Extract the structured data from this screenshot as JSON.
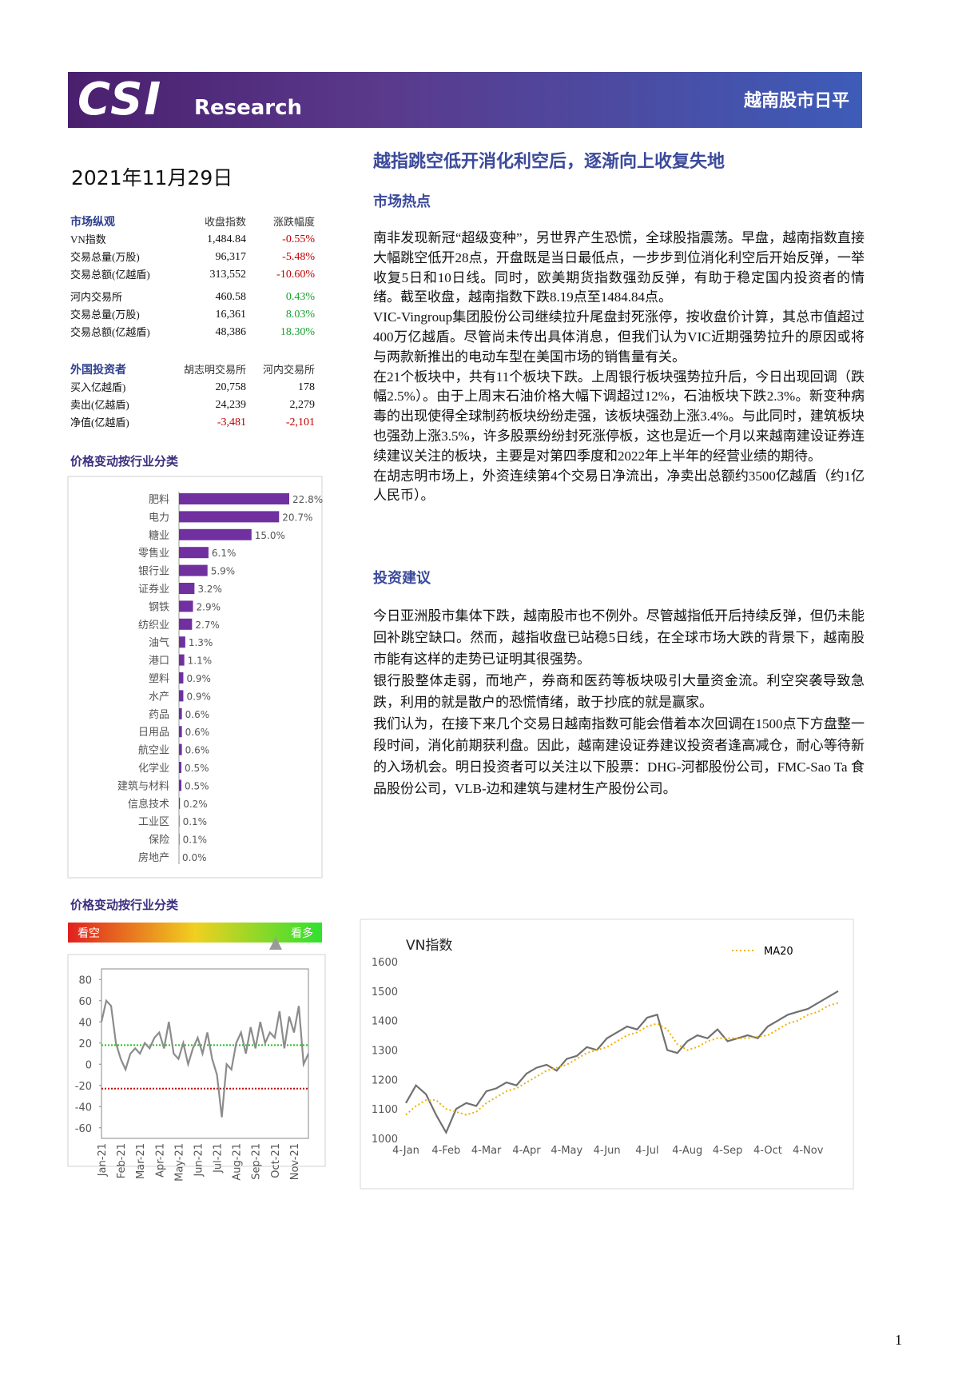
{
  "header": {
    "logo": "CSI",
    "brand": "Research",
    "report_name": "越南股市日平"
  },
  "date": "2021年11月29日",
  "title": "越指跳空低开消化利空后，逐渐向上收复失地",
  "market_table": {
    "header": [
      "市场纵观",
      "收盘指数",
      "涨跌幅度"
    ],
    "rows": [
      [
        "VN指数",
        "1,484.84",
        "-0.55%"
      ],
      [
        "交易总量(万股)",
        "96,317",
        "-5.48%"
      ],
      [
        "交易总额(亿越盾)",
        "313,552",
        "-10.60%"
      ],
      [
        "河内交易所",
        "460.58",
        "0.43%"
      ],
      [
        "交易总量(万股)",
        "16,361",
        "8.03%"
      ],
      [
        "交易总额(亿越盾)",
        "48,386",
        "18.30%"
      ]
    ]
  },
  "foreign_table": {
    "header": [
      "外国投资者",
      "胡志明交易所",
      "河内交易所"
    ],
    "rows": [
      [
        "买入亿越盾)",
        "20,758",
        "178"
      ],
      [
        "卖出(亿越盾)",
        "24,239",
        "2,279"
      ],
      [
        "净值(亿越盾)",
        "-3,481",
        "-2,101"
      ]
    ]
  },
  "sections": [
    {
      "heading": "市场热点",
      "paragraphs": [
        "南非发现新冠“超级变种”，另世界产生恐慌，全球股指震荡。早盘，越南指数直接大幅跳空低开28点，开盘既是当日最低点，一步步到位消化利空后开始反弹，一举收复5日和10日线。同时，欧美期货指数强劲反弹，有助于稳定国内投资者的情绪。截至收盘，越南指数下跌8.19点至1484.84点。",
        "VIC-Vingroup集团股份公司继续拉升尾盘封死涨停，按收盘价计算，其总市值超过400万亿越盾。尽管尚未传出具体消息，但我们认为VIC近期强势拉升的原因或将与两款新推出的电动车型在美国市场的销售量有关。",
        "在21个板块中，共有11个板块下跌。上周银行板块强势拉升后，今日出现回调（跌幅2.5%）。由于上周末石油价格大幅下调超过12%，石油板块下跌2.3%。新变种病毒的出现使得全球制药板块纷纷走强，该板块强劲上涨3.4%。与此同时，建筑板块也强劲上涨3.5%，许多股票纷纷封死涨停板，这也是近一个月以来越南建设证券连续建议关注的板块，主要是对第四季度和2022年上半年的经营业绩的期待。",
        "在胡志明市场上，外资连续第4个交易日净流出，净卖出总额约3500亿越盾（约1亿人民币）。"
      ]
    },
    {
      "heading": "投资建议",
      "paragraphs": [
        "今日亚洲股市集体下跌，越南股市也不例外。尽管越指低开后持续反弹，但仍未能回补跳空缺口。然而，越指收盘已站稳5日线，在全球市场大跌的背景下，越南股市能有这样的走势已证明其很强势。",
        "银行股整体走弱，而地产，券商和医药等板块吸引大量资金流。利空突袭导致急跌，利用的就是散户的恐慌情绪，敢于抄底的就是赢家。",
        "我们认为，在接下来几个交易日越南指数可能会借着本次回调在1500点下方盘整一段时间，消化前期获利盘。因此，越南建设证券建议投资者逢高减仓，耐心等待新的入场机会。明日投资者可以关注以下股票：DHG-河都股份公司，FMC-Sao Ta 食品股份公司，VLB-边和建筑与建材生产股份公司。"
      ]
    }
  ],
  "page_number": "1",
  "chart_data": [
    {
      "type": "hbar",
      "title": "价格变动按行业分类",
      "color": "#7030a0",
      "categories": [
        "肥料",
        "电力",
        "糖业",
        "零售业",
        "银行业",
        "证券业",
        "钢铁",
        "纺织业",
        "油气",
        "港口",
        "塑料",
        "水产",
        "药品",
        "日用品",
        "航空业",
        "化学业",
        "建筑与材料",
        "信息技术",
        "工业区",
        "保险",
        "房地产"
      ],
      "values": [
        22.8,
        20.7,
        15.0,
        6.1,
        5.9,
        3.2,
        2.9,
        2.7,
        1.3,
        1.1,
        0.9,
        0.9,
        0.6,
        0.6,
        0.6,
        0.5,
        0.5,
        0.2,
        0.1,
        0.1,
        0.0
      ],
      "value_labels": [
        "22.8%",
        "20.7%",
        "15.0%",
        "6.1%",
        "5.9%",
        "3.2%",
        "2.9%",
        "2.7%",
        "1.3%",
        "1.1%",
        "0.9%",
        "0.9%",
        "0.6%",
        "0.6%",
        "0.6%",
        "0.5%",
        "0.5%",
        "0.2%",
        "0.1%",
        "0.1%",
        "0.0%"
      ]
    },
    {
      "type": "line",
      "title": "价格变动按行业分类",
      "bear_label": "看空",
      "bull_label": "看多",
      "categories": [
        "Jan-21",
        null,
        null,
        null,
        "Feb-21",
        null,
        null,
        null,
        "Mar-21",
        null,
        null,
        null,
        "Apr-21",
        null,
        null,
        null,
        "May-21",
        null,
        null,
        null,
        "Jun-21",
        null,
        null,
        null,
        "Jul-21",
        null,
        null,
        null,
        "Aug-21",
        null,
        null,
        null,
        "Sep-21",
        null,
        null,
        null,
        "Oct-21",
        null,
        null,
        null,
        "Nov-21",
        null,
        null,
        null
      ],
      "series": [
        {
          "color": "#8c8c8c",
          "values": [
            40,
            60,
            55,
            20,
            5,
            -5,
            10,
            15,
            10,
            20,
            15,
            25,
            30,
            15,
            40,
            10,
            5,
            20,
            0,
            15,
            25,
            10,
            30,
            5,
            -10,
            -50,
            0,
            -5,
            20,
            30,
            10,
            35,
            15,
            40,
            20,
            30,
            25,
            50,
            15,
            45,
            30,
            55,
            0,
            10
          ]
        }
      ],
      "reference_lines": [
        {
          "value": 18,
          "color": "#22c022"
        },
        {
          "value": -23,
          "color": "#c00000"
        }
      ],
      "ylim": [
        -70,
        90
      ],
      "yticks": [
        -60,
        -40,
        -20,
        0,
        20,
        40,
        60,
        80
      ]
    },
    {
      "type": "line",
      "title": "VN指数",
      "categories": [
        "4-Jan",
        null,
        null,
        null,
        "4-Feb",
        null,
        null,
        null,
        "4-Mar",
        null,
        null,
        null,
        "4-Apr",
        null,
        null,
        null,
        "4-May",
        null,
        null,
        null,
        "4-Jun",
        null,
        null,
        null,
        "4-Jul",
        null,
        null,
        null,
        "4-Aug",
        null,
        null,
        null,
        "4-Sep",
        null,
        null,
        null,
        "4-Oct",
        null,
        null,
        null,
        "4-Nov",
        null,
        null,
        null
      ],
      "series": [
        {
          "color": "#707070",
          "values": [
            1120,
            1180,
            1150,
            1080,
            1020,
            1100,
            1120,
            1110,
            1160,
            1170,
            1190,
            1180,
            1220,
            1240,
            1250,
            1230,
            1270,
            1280,
            1310,
            1300,
            1340,
            1360,
            1380,
            1370,
            1410,
            1420,
            1300,
            1290,
            1330,
            1350,
            1340,
            1370,
            1330,
            1340,
            1350,
            1340,
            1380,
            1400,
            1420,
            1430,
            1440,
            1460,
            1480,
            1500
          ]
        },
        {
          "name": "MA20",
          "color": "#f0b000",
          "dashed": true,
          "values": [
            1080,
            1110,
            1130,
            1130,
            1100,
            1090,
            1080,
            1090,
            1120,
            1140,
            1160,
            1170,
            1190,
            1210,
            1230,
            1240,
            1250,
            1270,
            1290,
            1300,
            1310,
            1330,
            1350,
            1360,
            1380,
            1390,
            1370,
            1320,
            1300,
            1310,
            1330,
            1340,
            1340,
            1340,
            1340,
            1345,
            1350,
            1370,
            1390,
            1400,
            1420,
            1430,
            1450,
            1460
          ]
        }
      ],
      "ylim": [
        1000,
        1600
      ],
      "yticks": [
        1000,
        1100,
        1200,
        1300,
        1400,
        1500,
        1600
      ]
    }
  ]
}
